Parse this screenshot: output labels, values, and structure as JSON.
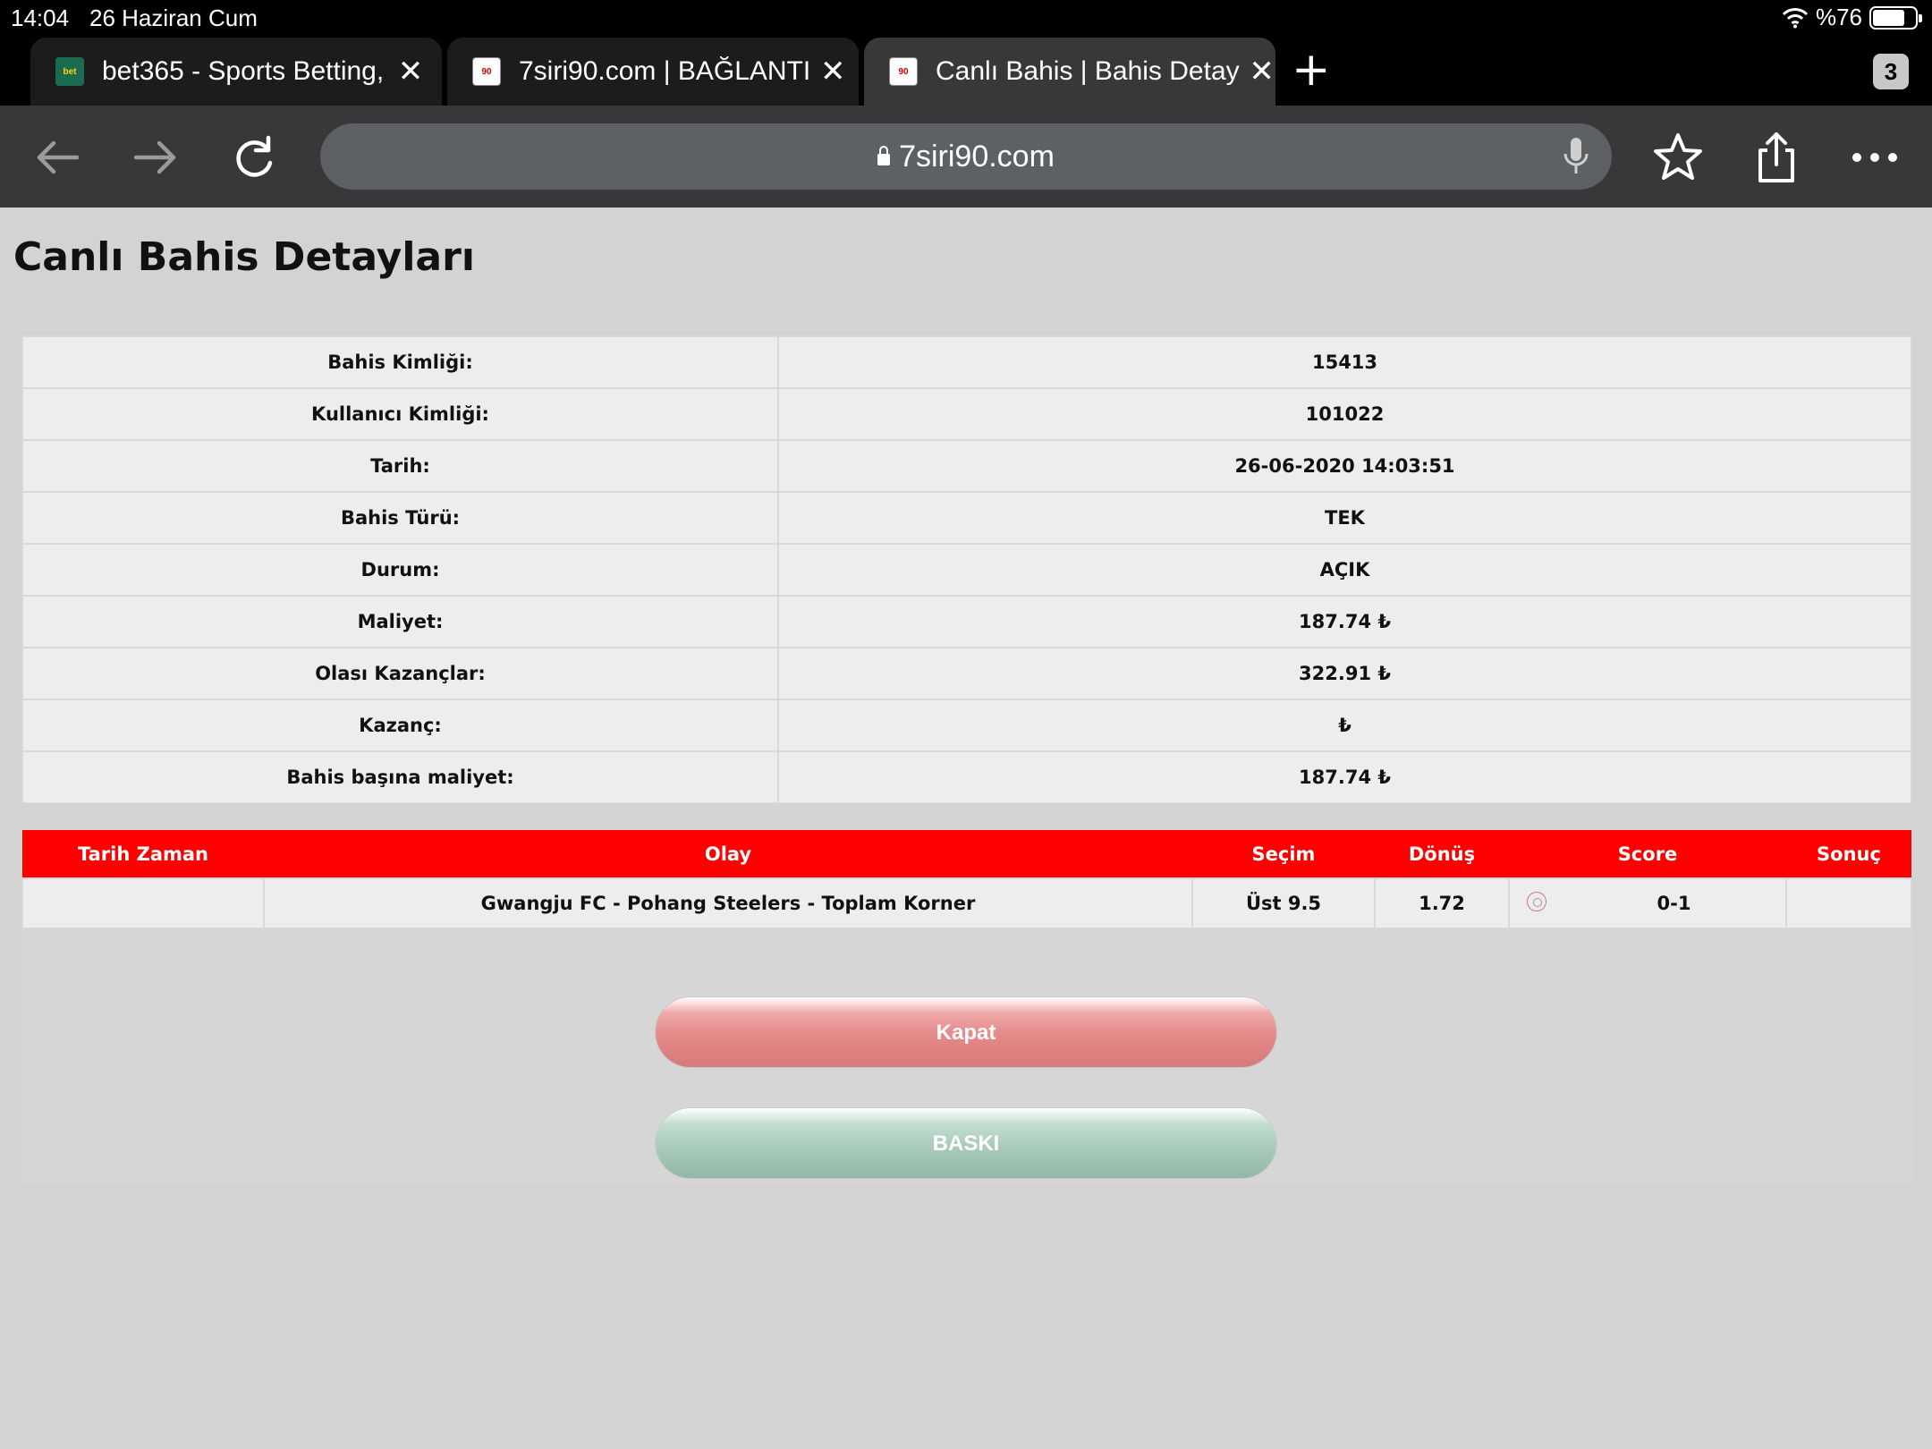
{
  "status_bar": {
    "time": "14:04",
    "date": "26 Haziran Cum",
    "battery_text": "%76",
    "battery_level": 0.76
  },
  "tabs": [
    {
      "title": "bet365 - Sports Betting,",
      "favicon": "bet365-favicon",
      "active": false
    },
    {
      "title": "7siri90.com | BAĞLANTI",
      "favicon": "7siri90-favicon",
      "active": false
    },
    {
      "title": "Canlı Bahis | Bahis Detay",
      "favicon": "7siri90-favicon",
      "active": true
    }
  ],
  "tab_count": "3",
  "address_bar": {
    "url": "7siri90.com"
  },
  "page": {
    "title": "Canlı Bahis Detayları",
    "details": [
      {
        "label": "Bahis Kimliği:",
        "value": "15413"
      },
      {
        "label": "Kullanıcı Kimliği:",
        "value": "101022"
      },
      {
        "label": "Tarih:",
        "value": "26-06-2020 14:03:51"
      },
      {
        "label": "Bahis Türü:",
        "value": "TEK"
      },
      {
        "label": "Durum:",
        "value": "AÇIK"
      },
      {
        "label": "Maliyet:",
        "value": "187.74 ₺"
      },
      {
        "label": "Olası Kazançlar:",
        "value": "322.91 ₺"
      },
      {
        "label": "Kazanç:",
        "value": "₺"
      },
      {
        "label": "Bahis başına maliyet:",
        "value": "187.74 ₺"
      }
    ],
    "bets_table": {
      "headers": {
        "date_time": "Tarih Zaman",
        "event": "Olay",
        "selection": "Seçim",
        "odds": "Dönüş",
        "score": "Score",
        "result": "Sonuç"
      },
      "rows": [
        {
          "date_time": "",
          "event": "Gwangju FC - Pohang Steelers - Toplam Korner",
          "selection": "Üst 9.5",
          "odds": "1.72",
          "score": "0-1",
          "result": ""
        }
      ]
    },
    "buttons": {
      "close": "Kapat",
      "print": "BASKI"
    }
  },
  "colors": {
    "header_red": "#ff0000",
    "page_bg": "#d3d3d3",
    "close_button": "#e48888",
    "print_button": "#a8cbbb"
  }
}
